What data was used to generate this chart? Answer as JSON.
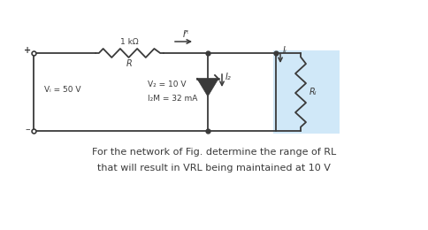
{
  "bg_color": "#ffffff",
  "highlight_color": "#d0e8f8",
  "wire_color": "#3a3a3a",
  "component_color": "#3a3a3a",
  "text_color": "#3a3a3a",
  "title_text1": "For the network of Fig. determine the range of RL",
  "title_text2": "that will result in VRL being maintained at 10 V",
  "label_R": "R",
  "label_1kohm": "1 kΩ",
  "label_Vs": "Vᵢ = 50 V",
  "label_Vz": "V₂ = 10 V",
  "label_Izm": "I₂M = 32 mA",
  "label_IR": "Iᴿ",
  "label_Iz": "I₂",
  "label_IL": "Iₗ",
  "label_RL": "Rₗ",
  "fig_width": 4.84,
  "fig_height": 2.6,
  "dpi": 100
}
